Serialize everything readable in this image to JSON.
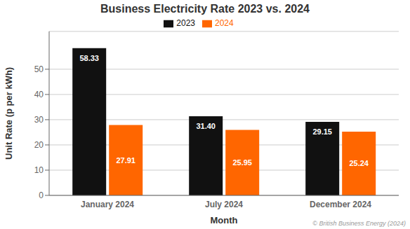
{
  "chart_data": {
    "type": "bar",
    "title": "Business Electricity Rate 2023 vs. 2024",
    "xlabel": "Month",
    "ylabel": "Unit Rate (p per kWh)",
    "categories": [
      "January 2024",
      "July 2024",
      "December 2024"
    ],
    "series": [
      {
        "name": "2023",
        "color": "#111111",
        "values": [
          58.33,
          31.4,
          29.15
        ],
        "value_labels": [
          "58.33",
          "31.40",
          "29.15"
        ]
      },
      {
        "name": "2024",
        "color": "#FF6600",
        "values": [
          27.91,
          25.95,
          25.24
        ],
        "value_labels": [
          "27.91",
          "25.95",
          "25.24"
        ]
      }
    ],
    "ylim": [
      0,
      65
    ],
    "yticks": [
      0,
      10,
      20,
      30,
      40,
      50
    ],
    "grid": true,
    "legend": "top",
    "data_labels": true,
    "annotations": [
      "© British Business Energy (2024)"
    ]
  }
}
